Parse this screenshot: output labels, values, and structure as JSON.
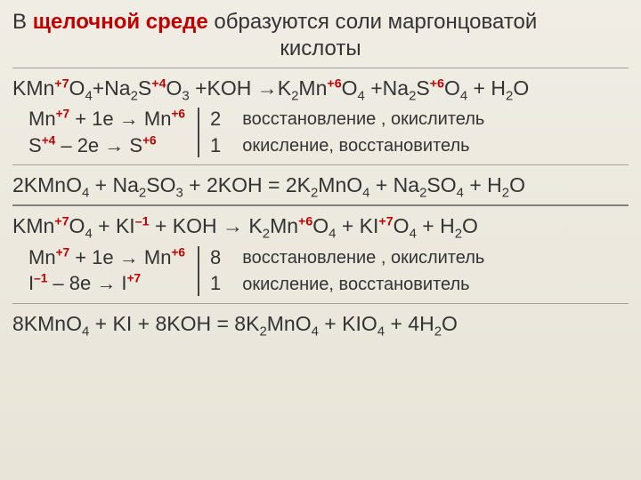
{
  "colors": {
    "accent": "#c00000",
    "text": "#333333",
    "rule": "#808080",
    "bg_top": "#f0ede4",
    "bg_bottom": "#e8e4d8"
  },
  "fontsizes": {
    "title": 24,
    "equation": 23,
    "half": 22,
    "note": 20
  },
  "title": {
    "part1": "В ",
    "highlight": "щелочной среде",
    "part2": " образуются соли маргонцоватой",
    "line2": "кислоты"
  },
  "eq1": {
    "lhs_a": "KMn",
    "ox1": "+7",
    "lhs_b": "O",
    "s4": "4",
    "lhs_c": "+Na",
    "s2": "2",
    "lhs_d": "S",
    "ox2": "+4",
    "lhs_e": "O",
    "s3": "3",
    "lhs_f": " +KOH →K",
    "s2b": "2",
    "lhs_g": "Mn",
    "ox3": "+6",
    "lhs_h": "O",
    "s4b": "4",
    "lhs_i": " +Na",
    "s2c": "2",
    "lhs_j": "S",
    "ox4": "+6",
    "lhs_k": "O",
    "s4c": "4",
    "lhs_l": " + H",
    "s2d": "2",
    "lhs_m": "O"
  },
  "hr1": {
    "l1a": "Mn",
    "l1ox1": "+7",
    "l1b": "  +  1e → Mn",
    "l1ox2": "+6",
    "l2a": "S",
    "l2ox1": "+4",
    "l2b": "  –  2e  → S",
    "l2ox2": "+6",
    "c1": "2",
    "c2": "1",
    "n1": "восстановление , окислитель",
    "n2": "окисление, восстановитель"
  },
  "eq1b": {
    "a": "2KMnO",
    "s4": "4",
    "b": "  + Na",
    "s2": "2",
    "c": "SO",
    "s3": "3",
    "d": " + 2KOH = 2K",
    "s2b": "2",
    "e": "MnO",
    "s4b": "4",
    "f": " + Na",
    "s2c": "2",
    "g": "SO",
    "s4c": "4",
    "h": " + H",
    "s2d": "2",
    "i": "O"
  },
  "eq2": {
    "a": "KMn",
    "ox1": "+7",
    "b": "O",
    "s4": "4",
    "c": "  +  KI",
    "ox2": "–1",
    "d": "  + KOH → K",
    "s2": "2",
    "e": "Mn",
    "ox3": "+6",
    "f": "O",
    "s4b": "4",
    "g": "  + KI",
    "ox4": "+7",
    "h": "O",
    "s4c": "4",
    "i": " + H",
    "s2b": "2",
    "j": "O"
  },
  "hr2": {
    "l1a": "Mn",
    "l1ox1": "+7",
    "l1b": "  +  1e → Mn",
    "l1ox2": "+6",
    "l2a": "I",
    "l2ox1": "–1",
    "l2b": "  –  8e  → I",
    "l2ox2": "+7",
    "c1": "8",
    "c2": "1",
    "n1": "восстановление , окислитель",
    "n2": "окисление, восстановитель"
  },
  "eq2b": {
    "a": "8KMnO",
    "s4": "4",
    "b": "  +  KI  + 8KOH   =  8K",
    "s2": "2",
    "c": "MnO",
    "s4b": "4",
    "d": "  +  KIO",
    "s4c": "4",
    "e": "  + 4H",
    "s2b": "2",
    "f": "O"
  }
}
